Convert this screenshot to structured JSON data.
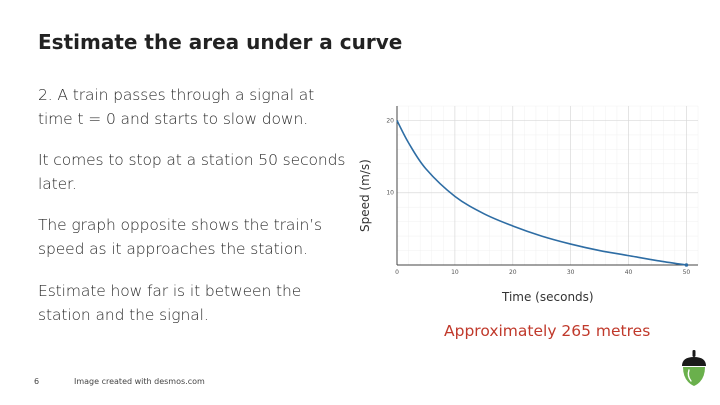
{
  "slide": {
    "title": "Estimate the area under a curve",
    "paragraphs": [
      "2.  A train passes through a signal at time t = 0 and starts to slow down.",
      "It comes to stop at a station 50 seconds later.",
      "The graph opposite shows the train’s speed as it approaches the station.",
      "Estimate how far is it between the station and the signal."
    ],
    "answer": "Approximately 265 metres",
    "page_number": "6",
    "credit": "Image created with desmos.com"
  },
  "colors": {
    "curve": "#2e6da4",
    "answer": "#c0392b"
  },
  "icons": {
    "logo": "acorn-logo-icon"
  },
  "chart_data": {
    "type": "line",
    "title": "",
    "xlabel": "Time (seconds)",
    "ylabel": "Speed (m/s)",
    "xlim": [
      0,
      52
    ],
    "ylim": [
      0,
      22
    ],
    "x_ticks": [
      0,
      10,
      20,
      30,
      40,
      50
    ],
    "y_ticks": [
      10,
      20
    ],
    "grid": true,
    "series": [
      {
        "x": [
          0,
          2,
          5,
          10,
          15,
          20,
          25,
          30,
          35,
          40,
          45,
          50
        ],
        "values": [
          20,
          16.9,
          13.3,
          9.5,
          7.1,
          5.4,
          4.0,
          2.9,
          2.0,
          1.3,
          0.6,
          0
        ]
      }
    ]
  }
}
